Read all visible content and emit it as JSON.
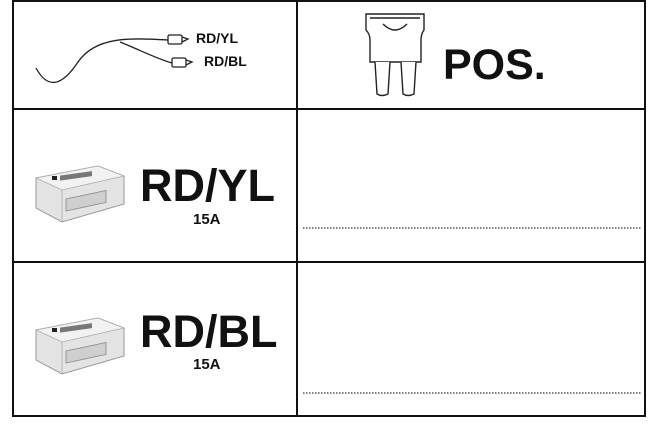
{
  "table": {
    "rows": [
      {
        "wire_labels": [
          "RD/YL",
          "RD/BL"
        ],
        "fuse_label": "POS."
      },
      {
        "module_label": "RD/YL",
        "rating": "15A"
      },
      {
        "module_label": "RD/BL",
        "rating": "15A"
      }
    ]
  }
}
